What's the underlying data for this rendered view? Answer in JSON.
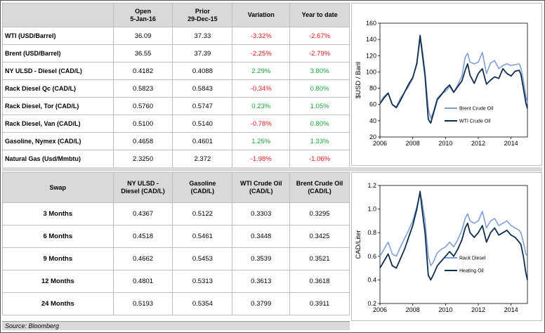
{
  "prices": {
    "headers": [
      {
        "l1": "",
        "l2": ""
      },
      {
        "l1": "Open",
        "l2": "5-Jan-16"
      },
      {
        "l1": "Prior",
        "l2": "29-Dec-15"
      },
      {
        "l1": "Variation",
        "l2": ""
      },
      {
        "l1": "Year to date",
        "l2": ""
      }
    ],
    "rows": [
      {
        "label": "WTI (USD/Barrel)",
        "open": "36.09",
        "prior": "37.33",
        "variation": "-3.32%",
        "ytd": "-2.67%"
      },
      {
        "label": "Brent (USD/Barrel)",
        "open": "36.55",
        "prior": "37.39",
        "variation": "-2.25%",
        "ytd": "-2.79%"
      },
      {
        "label": "NY ULSD - Diesel (CAD/L)",
        "open": "0.4182",
        "prior": "0.4088",
        "variation": "2.29%",
        "ytd": "3.80%"
      },
      {
        "label": "Rack Diesel Qc (CAD/L)",
        "open": "0.5823",
        "prior": "0.5843",
        "variation": "-0.34%",
        "ytd": "0.80%"
      },
      {
        "label": "Rack Diesel, Tor (CAD/L)",
        "open": "0.5760",
        "prior": "0.5747",
        "variation": "0.23%",
        "ytd": "1.05%"
      },
      {
        "label": "Rack Diesel, Van (CAD/L)",
        "open": "0.5100",
        "prior": "0.5140",
        "variation": "-0.78%",
        "ytd": "0.80%"
      },
      {
        "label": "Gasoline, Nymex (CAD/L)",
        "open": "0.4658",
        "prior": "0.4601",
        "variation": "1.25%",
        "ytd": "1.33%"
      },
      {
        "label": "Natural Gas (Usd/Mmbtu)",
        "open": "2.3250",
        "prior": "2.372",
        "variation": "-1.98%",
        "ytd": "-1.06%"
      }
    ]
  },
  "swap": {
    "headers": [
      {
        "l1": "Swap",
        "l2": ""
      },
      {
        "l1": "NY ULSD -",
        "l2": "Diesel (CAD/L)"
      },
      {
        "l1": "Gasoline",
        "l2": "(CAD/L)"
      },
      {
        "l1": "WTI Crude Oil",
        "l2": "(CAD/L)"
      },
      {
        "l1": "Brent Crude Oil",
        "l2": "(CAD/L)"
      }
    ],
    "rows": [
      {
        "label": "3 Months",
        "ulsd": "0.4367",
        "gasoline": "0.5122",
        "wti": "0.3303",
        "brent": "0.3295"
      },
      {
        "label": "6 Months",
        "ulsd": "0.4518",
        "gasoline": "0.5461",
        "wti": "0.3448",
        "brent": "0.3425"
      },
      {
        "label": "9 Months",
        "ulsd": "0.4662",
        "gasoline": "0.5453",
        "wti": "0.3539",
        "brent": "0.3521"
      },
      {
        "label": "12 Months",
        "ulsd": "0.4801",
        "gasoline": "0.5313",
        "wti": "0.3613",
        "brent": "0.3618"
      },
      {
        "label": "24 Months",
        "ulsd": "0.5193",
        "gasoline": "0.5354",
        "wti": "0.3799",
        "brent": "0.3911"
      }
    ]
  },
  "source": "Source: Bloomberg",
  "colors": {
    "light_series": "#7f9fd3",
    "dark_series": "#0d2d4d",
    "negative": "#e0161d",
    "positive": "#17a13a",
    "header_bg": "#d9d9d9"
  },
  "chart_data": [
    {
      "type": "line",
      "ylabel": "$USD / Baril",
      "xlabel": "",
      "xlim": [
        2006,
        2015
      ],
      "ylim": [
        20,
        160
      ],
      "xticks": [
        "2006",
        "2008",
        "2010",
        "2012",
        "2014"
      ],
      "yticks": [
        "20",
        "40",
        "60",
        "80",
        "100",
        "120",
        "140",
        "160"
      ],
      "legend_position": "right-middle",
      "series": [
        {
          "name": "Brent Crude Oil",
          "color": "#7f9fd3",
          "x": [
            2006.0,
            2006.25,
            2006.5,
            2006.75,
            2007.0,
            2007.25,
            2007.5,
            2007.75,
            2008.0,
            2008.25,
            2008.45,
            2008.55,
            2008.75,
            2008.95,
            2009.1,
            2009.25,
            2009.5,
            2009.75,
            2010.0,
            2010.25,
            2010.5,
            2010.75,
            2011.0,
            2011.2,
            2011.35,
            2011.5,
            2011.75,
            2012.0,
            2012.25,
            2012.5,
            2012.75,
            2013.0,
            2013.25,
            2013.5,
            2013.75,
            2014.0,
            2014.25,
            2014.5,
            2014.6,
            2014.75,
            2014.9,
            2015.0
          ],
          "y": [
            62,
            70,
            74,
            60,
            57,
            68,
            75,
            82,
            92,
            112,
            140,
            133,
            100,
            55,
            43,
            50,
            68,
            73,
            76,
            82,
            75,
            84,
            95,
            118,
            123,
            112,
            110,
            112,
            124,
            98,
            111,
            114,
            104,
            108,
            110,
            108,
            109,
            110,
            105,
            90,
            70,
            62
          ]
        },
        {
          "name": "WTI Crude Oil",
          "color": "#0d2d4d",
          "x": [
            2006.0,
            2006.25,
            2006.5,
            2006.75,
            2007.0,
            2007.25,
            2007.5,
            2007.75,
            2008.0,
            2008.25,
            2008.45,
            2008.55,
            2008.75,
            2008.95,
            2009.1,
            2009.25,
            2009.5,
            2009.75,
            2010.0,
            2010.25,
            2010.5,
            2010.75,
            2011.0,
            2011.2,
            2011.35,
            2011.5,
            2011.75,
            2012.0,
            2012.25,
            2012.5,
            2012.75,
            2013.0,
            2013.25,
            2013.5,
            2013.75,
            2014.0,
            2014.25,
            2014.5,
            2014.6,
            2014.75,
            2014.9,
            2015.0
          ],
          "y": [
            61,
            68,
            74,
            60,
            56,
            65,
            75,
            85,
            93,
            110,
            145,
            128,
            95,
            42,
            37,
            48,
            66,
            72,
            79,
            84,
            75,
            82,
            89,
            102,
            110,
            96,
            86,
            98,
            104,
            85,
            90,
            94,
            92,
            104,
            98,
            95,
            101,
            102,
            97,
            80,
            62,
            55
          ]
        }
      ]
    },
    {
      "type": "line",
      "ylabel": "CAD/Liter",
      "xlabel": "",
      "xlim": [
        2006,
        2015
      ],
      "ylim": [
        0.2,
        1.2
      ],
      "xticks": [
        "2006",
        "2008",
        "2010",
        "2012",
        "2014"
      ],
      "yticks": [
        "0.2",
        "0.4",
        "0.6",
        "0.8",
        "1.0",
        "1.2"
      ],
      "legend_position": "right-bottom",
      "series": [
        {
          "name": "Rack Diesel",
          "color": "#7f9fd3",
          "x": [
            2006.0,
            2006.25,
            2006.5,
            2006.75,
            2007.0,
            2007.25,
            2007.5,
            2007.75,
            2008.0,
            2008.25,
            2008.45,
            2008.55,
            2008.75,
            2008.95,
            2009.1,
            2009.25,
            2009.5,
            2009.75,
            2010.0,
            2010.25,
            2010.5,
            2010.75,
            2011.0,
            2011.2,
            2011.35,
            2011.5,
            2011.75,
            2012.0,
            2012.25,
            2012.5,
            2012.75,
            2013.0,
            2013.25,
            2013.5,
            2013.75,
            2014.0,
            2014.25,
            2014.5,
            2014.6,
            2014.75,
            2014.9,
            2015.0
          ],
          "y": [
            0.6,
            0.66,
            0.72,
            0.62,
            0.6,
            0.68,
            0.75,
            0.82,
            0.9,
            1.02,
            1.13,
            1.08,
            0.9,
            0.6,
            0.52,
            0.55,
            0.63,
            0.66,
            0.68,
            0.72,
            0.68,
            0.74,
            0.82,
            0.92,
            0.96,
            0.9,
            0.88,
            0.9,
            0.98,
            0.84,
            0.9,
            0.92,
            0.86,
            0.88,
            0.9,
            0.86,
            0.84,
            0.82,
            0.8,
            0.72,
            0.62,
            0.6
          ]
        },
        {
          "name": "Heating Oil",
          "color": "#0d2d4d",
          "x": [
            2006.0,
            2006.25,
            2006.5,
            2006.75,
            2007.0,
            2007.25,
            2007.5,
            2007.75,
            2008.0,
            2008.25,
            2008.45,
            2008.55,
            2008.75,
            2008.95,
            2009.1,
            2009.25,
            2009.5,
            2009.75,
            2010.0,
            2010.25,
            2010.5,
            2010.75,
            2011.0,
            2011.2,
            2011.35,
            2011.5,
            2011.75,
            2012.0,
            2012.25,
            2012.5,
            2012.75,
            2013.0,
            2013.25,
            2013.5,
            2013.75,
            2014.0,
            2014.25,
            2014.5,
            2014.6,
            2014.75,
            2014.9,
            2015.0
          ],
          "y": [
            0.5,
            0.56,
            0.62,
            0.52,
            0.5,
            0.58,
            0.66,
            0.76,
            0.86,
            1.0,
            1.15,
            1.02,
            0.8,
            0.44,
            0.4,
            0.44,
            0.52,
            0.56,
            0.6,
            0.64,
            0.6,
            0.66,
            0.74,
            0.84,
            0.88,
            0.8,
            0.76,
            0.8,
            0.86,
            0.72,
            0.8,
            0.84,
            0.78,
            0.8,
            0.82,
            0.78,
            0.76,
            0.72,
            0.7,
            0.6,
            0.46,
            0.4
          ]
        }
      ]
    }
  ]
}
